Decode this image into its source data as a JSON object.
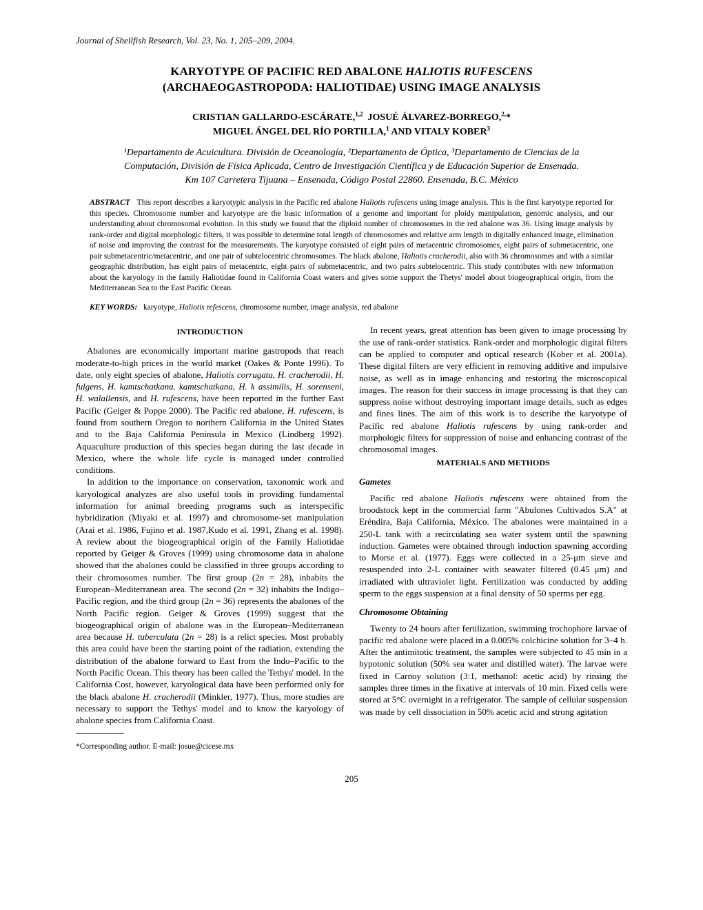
{
  "journal_line": "Journal of Shellfish Research, Vol. 23, No. 1, 205–209, 2004.",
  "title_line1": "KARYOTYPE OF PACIFIC RED ABALONE HALIOTIS RUFESCENS",
  "title_line2": "(ARCHAEOGASTROPODA: HALIOTIDAE) USING IMAGE ANALYSIS",
  "authors_line1": "CRISTIAN GALLARDO-ESCÁRATE,¹,²  JOSUÉ ÁLVAREZ-BORREGO,²,*",
  "authors_line2": "MIGUEL ÁNGEL DEL RÍO PORTILLA,¹ AND VITALY KOBER³",
  "affiliations": "¹Departamento de Acuicultura. División de Oceanología, ²Departamento de Óptica, ³Departamento de Ciencias de la Computación, División de Física Aplicada, Centro de Investigación Científica y de Educación Superior de Ensenada. Km 107 Carretera Tijuana – Ensenada, Código Postal 22860. Ensenada, B.C. México",
  "abstract_label": "ABSTRACT",
  "abstract_text": "This report describes a karyotypic analysis in the Pacific red abalone Haliotis rufescens using image analysis. This is the first karyotype reported for this species. Chromosome number and karyotype are the basic information of a genome and important for ploidy manipulation, genomic analysis, and our understanding about chromosomal evolution. In this study we found that the diploid number of chromosomes in the red abalone was 36. Using image analysis by rank-order and digital morphologic filters, it was possible to determine total length of chromosomes and relative arm length in digitally enhanced image, elimination of noise and improving the contrast for the measurements. The karyotype consisted of eight pairs of metacentric chromosomes, eight pairs of submetacentric, one pair submetacentric/metacentric, and one pair of subtelocentric chromosomes. The black abalone, Haliotis cracherodii, also with 36 chromosomes and with a similar geographic distribution, has eight pairs of metacentric, eight pairs of submetacentric, and two pairs subtelocentric. This study contributes with new information about the karyology in the family Haliotidae found in California Coast waters and gives some support the Thetys' model about biogeographical origin, from the Mediterranean Sea to the East Pacific Ocean.",
  "keywords_label": "KEY WORDS:",
  "keywords_text": "karyotype, Haliotis refescens, chromosome number, image analysis, red abalone",
  "heading_intro": "INTRODUCTION",
  "heading_mm": "MATERIALS AND METHODS",
  "sub_gametes": "Gametes",
  "sub_chrom": "Chromosome Obtaining",
  "left_p1": "Abalones are economically important marine gastropods that reach moderate-to-high prices in the world market (Oakes & Ponte 1996). To date, only eight species of abalone, Haliotis corrugata, H. cracherodii, H. fulgens, H. kamtschatkana. kamtschatkana, H. k assimilis, H. sorenseni, H. walallensis, and H. rufescens, have been reported in the further East Pacific (Geiger & Poppe 2000). The Pacific red abalone, H. rufescens, is found from southern Oregon to northern California in the United States and to the Baja California Peninsula in Mexico (Lindberg 1992). Aquaculture production of this species began during the last decade in Mexico, where the whole life cycle is managed under controlled conditions.",
  "left_p2": "In addition to the importance on conservation, taxonomic work and karyological analyzes are also useful tools in providing fundamental information for animal breeding programs such as interspecific hybridization (Miyaki et al. 1997) and chromosome-set manipulation (Arai et al. 1986, Fujino et al. 1987,Kudo et al. 1991, Zhang et al. 1998). A review about the biogeographical origin of the Family Haliotidae reported by Geiger & Groves (1999) using chromosome data in abalone showed that the abalones could be classified in three groups according to their chromosomes number. The first group (2n = 28), inhabits the European–Mediterranean area. The second (2n = 32) inhabits the Indigo–Pacific region, and the third group (2n = 36) represents the abalones of the North Pacific region. Geiger & Groves (1999) suggest that the biogeographical origin of abalone was in the European–Mediterranean area because H. tuberculata (2n = 28) is a relict species. Most probably this area could have been the starting point of the radiation, extending the distribution of the abalone forward to East from the Indo–Pacific to the North Pacific Ocean. This theory has been called the Tethys' model. In the California Cost, however, karyological data have been performed only for the black abalone H. cracherodii (Minkler, 1977). Thus, more studies are necessary to support the Tethys' model and to know the karyology of abalone species from California Coast.",
  "footnote": "*Corresponding author. E-mail: josue@cicese.mx",
  "right_p1": "In recent years, great attention has been given to image processing by the use of rank-order statistics. Rank-order and morphologic digital filters can be applied to computer and optical research (Kober et al. 2001a). These digital filters are very efficient in removing additive and impulsive noise, as well as in image enhancing and restoring the microscopical images. The reason for their success in image processing is that they can suppress noise without destroying important image details, such as edges and fines lines. The aim of this work is to describe the karyotype of Pacific red abalone Haliotis rufescens by using rank-order and morphologic filters for suppression of noise and enhancing contrast of the chromosomal images.",
  "right_p2": "Pacific red abalone Haliotis rufescens were obtained from the broodstock kept in the commercial farm \"Abulones Cultivados S.A\" at Eréndira, Baja California, México. The abalones were maintained in a 250-L tank with a recirculating sea water system until the spawning induction. Gametes were obtained through induction spawning according to Morse et al. (1977). Eggs were collected in a 25-μm sieve and resuspended into 2-L container with seawater filtered (0.45 μm) and irradiated with ultraviolet light. Fertilization was conducted by adding sperm to the eggs suspension at a final density of 50 sperms per egg.",
  "right_p3": "Twenty to 24 hours after fertilization, swimming trochophore larvae of pacific red abalone were placed in a 0.005% colchicine solution for 3–4 h. After the antimitotic treatment, the samples were subjected to 45 min in a hypotonic solution (50% sea water and distilled water). The larvae were fixed in Carnoy solution (3:1, methanol: acetic acid) by rinsing the samples three times in the fixative at intervals of 10 min. Fixed cells were stored at 5°C overnight in a refrigerator. The sample of cellular suspension was made by cell dissociation in 50% acetic acid and strong agitation",
  "pagenum": "205"
}
